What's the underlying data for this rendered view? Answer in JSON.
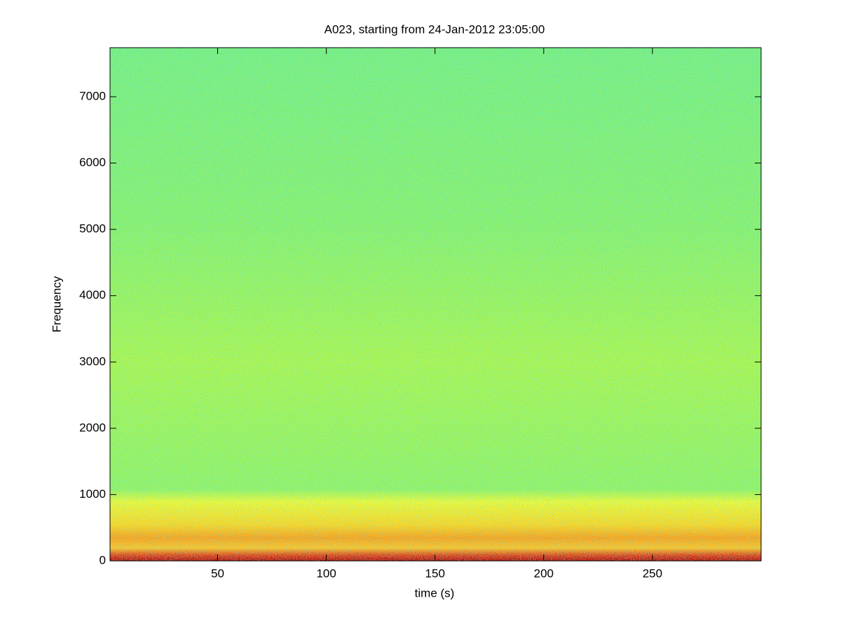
{
  "chart_data": {
    "type": "spectrogram",
    "title": "A023, starting from 24-Jan-2012 23:05:00",
    "x_label": "time (s)",
    "y_label": "Frequency",
    "xlim": [
      0.5,
      300
    ],
    "xticks": [
      50,
      100,
      150,
      200,
      250
    ],
    "ylim": [
      0,
      7740
    ],
    "yticks": [
      0,
      1000,
      2000,
      3000,
      4000,
      5000,
      6000,
      7000
    ],
    "colormap": "jet"
  }
}
